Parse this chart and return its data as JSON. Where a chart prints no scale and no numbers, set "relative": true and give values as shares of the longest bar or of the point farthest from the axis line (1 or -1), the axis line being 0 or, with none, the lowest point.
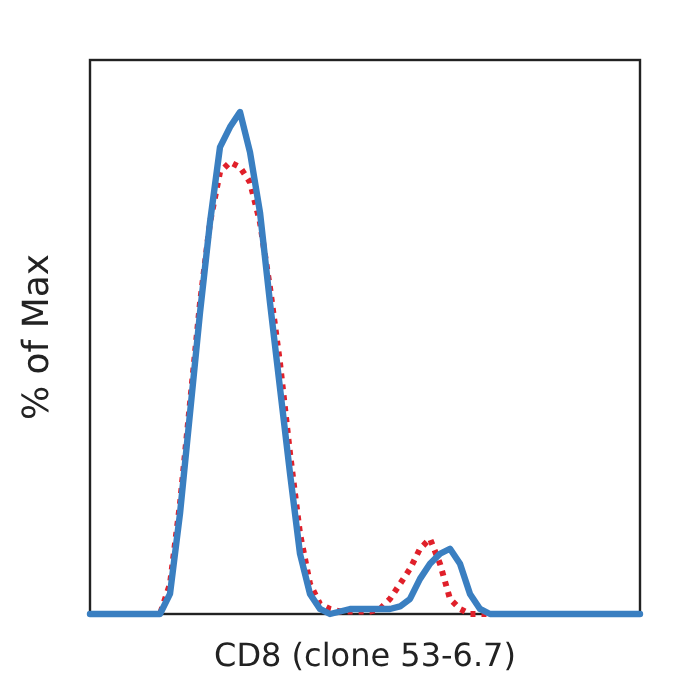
{
  "chart_data": {
    "type": "line",
    "relative": true,
    "xlabel": "CD8 (clone 53-6.7)",
    "ylabel": "% of Max",
    "categories": [
      null,
      null,
      null,
      null,
      null,
      null,
      null,
      null,
      null,
      null,
      null,
      null,
      null,
      null,
      null,
      null,
      null,
      null,
      null,
      null,
      null,
      null,
      null,
      null,
      null,
      null,
      null,
      null,
      null,
      null,
      null,
      null,
      null,
      null,
      null,
      null,
      null,
      null,
      null,
      null,
      null,
      null,
      null,
      null,
      null,
      null,
      null,
      null,
      null,
      null,
      null,
      null,
      null,
      null,
      null,
      null
    ],
    "series": [
      {
        "color": "#e0202a",
        "line_style": "dotted",
        "values": [
          null,
          null,
          null,
          null,
          null,
          0,
          0,
          0,
          0.06,
          0.22,
          0.42,
          0.62,
          0.78,
          0.88,
          0.9,
          0.89,
          0.86,
          0.78,
          0.65,
          0.5,
          0.32,
          0.16,
          0.06,
          0.02,
          0.01,
          0.005,
          0.005,
          0.005,
          0.005,
          0.01,
          0.03,
          0.06,
          0.09,
          0.13,
          0.15,
          0.1,
          0.03,
          0.01,
          0,
          0,
          0,
          0,
          0,
          null,
          null,
          null,
          null,
          null,
          null,
          null,
          null,
          null,
          null,
          null,
          null,
          null
        ]
      },
      {
        "color": "#3a7fc1",
        "line_style": "solid",
        "values": [
          0,
          0,
          0,
          0,
          0,
          0,
          0,
          0,
          0.04,
          0.2,
          0.4,
          0.6,
          0.78,
          0.93,
          0.97,
          1.0,
          0.92,
          0.8,
          0.62,
          0.45,
          0.28,
          0.12,
          0.04,
          0.01,
          0,
          0.005,
          0.01,
          0.01,
          0.01,
          0.01,
          0.01,
          0.015,
          0.03,
          0.07,
          0.1,
          0.12,
          0.13,
          0.1,
          0.04,
          0.01,
          0,
          0,
          0,
          0,
          0,
          0,
          0,
          0,
          0,
          0,
          0,
          0,
          0,
          0,
          0,
          0
        ]
      }
    ]
  }
}
